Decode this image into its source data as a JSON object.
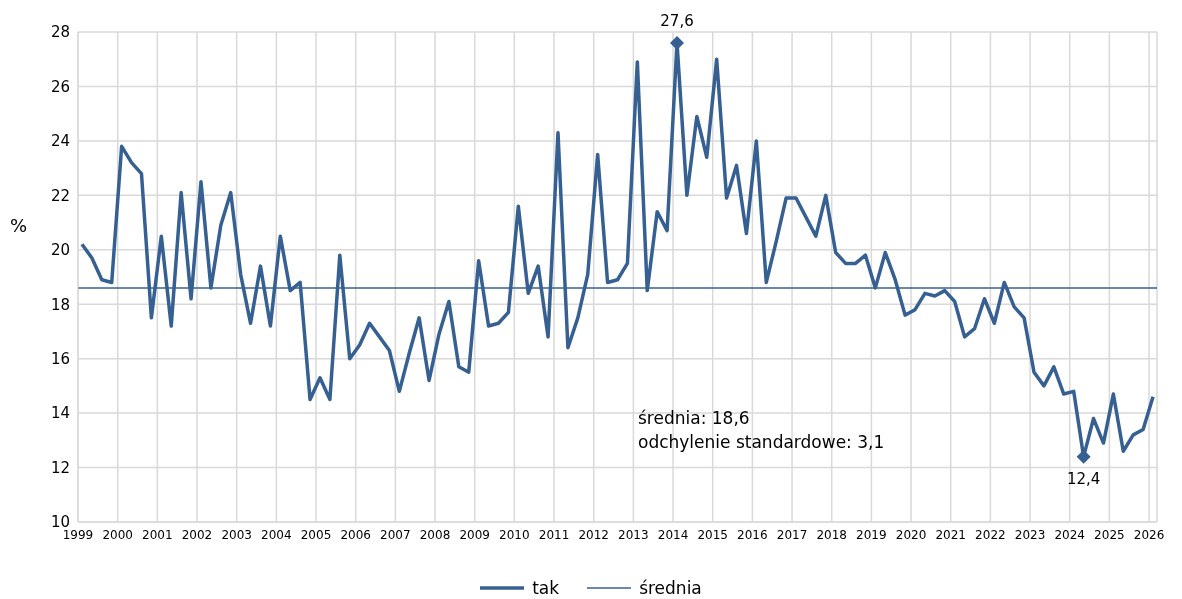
{
  "chart_data": {
    "type": "line",
    "ylabel": "%",
    "x": [
      1999.1,
      1999.35,
      1999.6,
      1999.85,
      2000.1,
      2000.35,
      2000.6,
      2000.85,
      2001.1,
      2001.35,
      2001.6,
      2001.85,
      2002.1,
      2002.35,
      2002.6,
      2002.85,
      2003.1,
      2003.35,
      2003.6,
      2003.85,
      2004.1,
      2004.35,
      2004.6,
      2004.85,
      2005.1,
      2005.35,
      2005.6,
      2005.85,
      2006.1,
      2006.35,
      2006.6,
      2006.85,
      2007.1,
      2007.35,
      2007.6,
      2007.85,
      2008.1,
      2008.35,
      2008.6,
      2008.85,
      2009.1,
      2009.35,
      2009.6,
      2009.85,
      2010.1,
      2010.35,
      2010.6,
      2010.85,
      2011.1,
      2011.35,
      2011.6,
      2011.85,
      2012.1,
      2012.35,
      2012.6,
      2012.85,
      2013.1,
      2013.35,
      2013.6,
      2013.85,
      2014.1,
      2014.35,
      2014.6,
      2014.85,
      2015.1,
      2015.35,
      2015.6,
      2015.85,
      2016.1,
      2016.35,
      2016.6,
      2016.85,
      2017.1,
      2017.35,
      2017.6,
      2017.85,
      2018.1,
      2018.35,
      2018.6,
      2018.85,
      2019.1,
      2019.35,
      2019.6,
      2019.85,
      2020.1,
      2020.35,
      2020.6,
      2020.85,
      2021.1,
      2021.35,
      2021.6,
      2021.85,
      2022.1,
      2022.35,
      2022.6,
      2022.85,
      2023.1,
      2023.35,
      2023.6,
      2023.85,
      2024.1,
      2024.35,
      2024.6,
      2024.85,
      2025.1,
      2025.35,
      2025.6,
      2025.85,
      2026.1
    ],
    "series": [
      {
        "name": "tak",
        "color": "#366092",
        "values": [
          20.2,
          19.7,
          18.9,
          18.8,
          23.8,
          23.2,
          22.8,
          17.5,
          20.5,
          17.2,
          22.1,
          18.2,
          22.5,
          18.6,
          20.9,
          22.1,
          19.1,
          17.3,
          19.4,
          17.2,
          20.5,
          18.5,
          18.8,
          14.5,
          15.3,
          14.5,
          19.8,
          16.0,
          16.5,
          17.3,
          16.8,
          16.3,
          14.8,
          16.2,
          17.5,
          15.2,
          16.9,
          18.1,
          15.7,
          15.5,
          19.6,
          17.2,
          17.3,
          17.7,
          21.6,
          18.4,
          19.4,
          16.8,
          24.3,
          16.4,
          17.5,
          19.1,
          23.5,
          18.8,
          18.9,
          19.5,
          26.9,
          18.5,
          21.4,
          20.7,
          27.6,
          22.0,
          24.9,
          23.4,
          27.0,
          21.9,
          23.1,
          20.6,
          24.0,
          18.8,
          20.3,
          21.9,
          21.9,
          21.2,
          20.5,
          22.0,
          19.9,
          19.5,
          19.5,
          19.8,
          18.6,
          19.9,
          18.9,
          17.6,
          17.8,
          18.4,
          18.3,
          18.5,
          18.1,
          16.8,
          17.1,
          18.2,
          17.3,
          18.8,
          17.9,
          17.5,
          15.5,
          15.0,
          15.7,
          14.7,
          14.8,
          12.4,
          13.8,
          12.9,
          14.7,
          12.6,
          13.2,
          13.4,
          14.6
        ]
      }
    ],
    "ref_lines": [
      {
        "axis": "y",
        "value": 18.6,
        "label": "średnia",
        "color": "#366092"
      }
    ],
    "annotations": [
      {
        "text": "27,6",
        "x": 2014.1,
        "y": 27.6
      },
      {
        "text": "12,4",
        "x": 2024.35,
        "y": 12.4
      },
      "średnia: 18,6",
      "odchylenie standardowe: 3,1"
    ],
    "xlim": [
      1999,
      2026.2
    ],
    "xticks": [
      1999,
      2000,
      2001,
      2002,
      2003,
      2004,
      2005,
      2006,
      2007,
      2008,
      2009,
      2010,
      2011,
      2012,
      2013,
      2014,
      2015,
      2016,
      2017,
      2018,
      2019,
      2020,
      2021,
      2022,
      2023,
      2024,
      2025,
      2026
    ],
    "ylim": [
      10,
      28
    ],
    "yticks": [
      10,
      12,
      14,
      16,
      18,
      20,
      22,
      24,
      26,
      28
    ],
    "grid": true,
    "legend": "bottom",
    "marker": "none",
    "line_style": "solid"
  }
}
